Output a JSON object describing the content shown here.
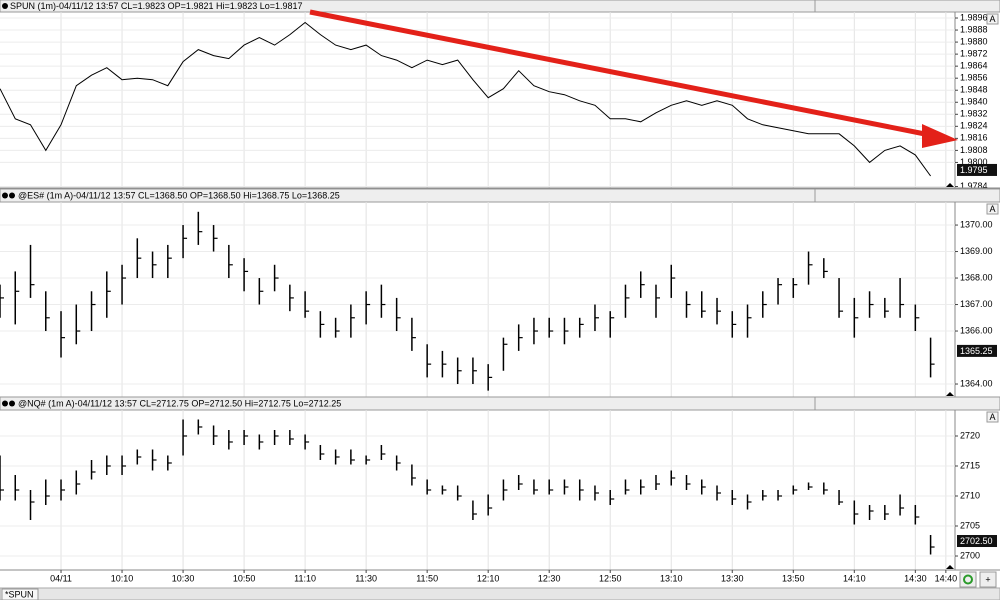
{
  "time_axis": {
    "xlim": [
      "09:30",
      "14:43"
    ],
    "xticks": [
      {
        "value": "09:50",
        "label": "04/11"
      },
      "10:10",
      "10:30",
      "10:50",
      "11:10",
      "11:30",
      "11:50",
      "12:10",
      "12:30",
      "12:50",
      "13:10",
      "13:30",
      "13:50",
      "14:10",
      "14:30",
      "14:40"
    ],
    "x": [
      "09:30",
      "09:35",
      "09:40",
      "09:45",
      "09:50",
      "09:55",
      "10:00",
      "10:05",
      "10:10",
      "10:15",
      "10:20",
      "10:25",
      "10:30",
      "10:35",
      "10:40",
      "10:45",
      "10:50",
      "10:55",
      "11:00",
      "11:05",
      "11:10",
      "11:15",
      "11:20",
      "11:25",
      "11:30",
      "11:35",
      "11:40",
      "11:45",
      "11:50",
      "11:55",
      "12:00",
      "12:05",
      "12:10",
      "12:15",
      "12:20",
      "12:25",
      "12:30",
      "12:35",
      "12:40",
      "12:45",
      "12:50",
      "12:55",
      "13:00",
      "13:05",
      "13:10",
      "13:15",
      "13:20",
      "13:25",
      "13:30",
      "13:35",
      "13:40",
      "13:45",
      "13:50",
      "13:55",
      "14:00",
      "14:05",
      "14:10",
      "14:15",
      "14:20",
      "14:25",
      "14:30",
      "14:35"
    ]
  },
  "chart_data": [
    {
      "type": "line",
      "title": "SPUN (1m)-04/11/12 13:57 CL=1.9823 OP=1.9821 Hi=1.9823 Lo=1.9817",
      "color": "#000000",
      "ylim": [
        1.9783,
        1.99
      ],
      "yticks": [
        1.9784,
        {
          "value": 1.98,
          "label": "1.9800"
        },
        1.9808,
        1.9816,
        1.9824,
        1.9832,
        {
          "value": 1.984,
          "label": "1.9840"
        },
        1.9848,
        1.9856,
        1.9864,
        1.9872,
        {
          "value": 1.988,
          "label": "1.9880"
        },
        1.9888,
        1.9896
      ],
      "last_value": {
        "value": 1.9795,
        "label": "1.9795"
      },
      "values": [
        1.9849,
        1.9829,
        1.9825,
        1.9808,
        1.9825,
        1.9851,
        1.9858,
        1.9863,
        1.9855,
        1.9856,
        1.9855,
        1.9851,
        1.9867,
        1.9875,
        1.9871,
        1.9869,
        1.9878,
        1.9883,
        1.9878,
        1.9885,
        1.9893,
        1.9885,
        1.9878,
        1.9875,
        1.9878,
        1.9871,
        1.9868,
        1.9863,
        1.9868,
        1.9865,
        1.9868,
        1.9855,
        1.9843,
        1.9849,
        1.9861,
        1.9851,
        1.9847,
        1.9845,
        1.9841,
        1.9838,
        1.9829,
        1.9829,
        1.9827,
        1.9833,
        1.9838,
        1.9841,
        1.9838,
        1.9841,
        1.9838,
        1.9829,
        1.9825,
        1.9823,
        1.9821,
        1.9819,
        1.9819,
        1.9819,
        1.9811,
        1.98,
        1.9808,
        1.9811,
        1.9805,
        1.9791
      ]
    },
    {
      "type": "ohlc",
      "title": "@ES# (1m A)-04/11/12 13:57 CL=1368.50 OP=1368.50 Hi=1368.75 Lo=1368.25",
      "color": "#000000",
      "ylim": [
        1363.51,
        1370.87
      ],
      "yticks": [
        {
          "value": 1364,
          "label": "1364.00"
        },
        {
          "value": 1366,
          "label": "1366.00"
        },
        {
          "value": 1367,
          "label": "1367.00"
        },
        {
          "value": 1368,
          "label": "1368.00"
        },
        {
          "value": 1369,
          "label": "1369.00"
        },
        {
          "value": 1370,
          "label": "1370.00"
        }
      ],
      "last_value": {
        "value": 1365.25,
        "label": "1365.25"
      },
      "high": [
        1367.75,
        1368.25,
        1369.25,
        1367.5,
        1366.75,
        1367,
        1367.5,
        1368.25,
        1368.5,
        1369.5,
        1369,
        1369.25,
        1370,
        1370.5,
        1370,
        1369.25,
        1368.75,
        1368,
        1368.5,
        1367.75,
        1367.5,
        1366.75,
        1366.5,
        1367,
        1367.5,
        1367.75,
        1367.25,
        1366.5,
        1365.5,
        1365.25,
        1365,
        1365,
        1364.75,
        1365.75,
        1366.25,
        1366.5,
        1366.5,
        1366.5,
        1366.5,
        1367,
        1366.75,
        1367.75,
        1368.25,
        1367.75,
        1368.5,
        1367.5,
        1367.5,
        1367.25,
        1366.75,
        1367,
        1367.5,
        1368,
        1368,
        1369,
        1368.75,
        1368,
        1367.25,
        1367.5,
        1367.25,
        1368,
        1367,
        1365.75
      ],
      "low": [
        1366.5,
        1366.25,
        1367.25,
        1366,
        1365,
        1365.5,
        1366,
        1366.5,
        1367,
        1368,
        1368,
        1368,
        1368.75,
        1369.25,
        1369,
        1368,
        1367.5,
        1367,
        1367.5,
        1366.75,
        1366.5,
        1365.75,
        1365.75,
        1365.75,
        1366.25,
        1366.5,
        1366,
        1365.25,
        1364.25,
        1364.25,
        1364,
        1364,
        1363.75,
        1364.5,
        1365.25,
        1365.5,
        1365.75,
        1365.5,
        1365.75,
        1366,
        1365.75,
        1366.5,
        1367.25,
        1366.5,
        1367.25,
        1366.5,
        1366.5,
        1366.25,
        1365.75,
        1365.75,
        1366.5,
        1367,
        1367.25,
        1367.75,
        1368,
        1366.5,
        1365.75,
        1366.5,
        1366.5,
        1366.5,
        1366,
        1364.25
      ],
      "close": [
        1367.25,
        1367.5,
        1367.75,
        1366.5,
        1365.75,
        1366,
        1367,
        1367.5,
        1368,
        1368.75,
        1368.5,
        1368.75,
        1369.5,
        1369.75,
        1369.5,
        1368.5,
        1368.25,
        1367.5,
        1368,
        1367.25,
        1366.75,
        1366.25,
        1366,
        1366.5,
        1367,
        1367,
        1366.5,
        1365.75,
        1364.75,
        1364.75,
        1364.5,
        1364.5,
        1364.25,
        1365.5,
        1365.75,
        1366,
        1366,
        1366,
        1366.25,
        1366.5,
        1366.5,
        1367.25,
        1367.75,
        1367.25,
        1368,
        1367,
        1366.75,
        1366.75,
        1366.25,
        1366.5,
        1367,
        1367.75,
        1367.75,
        1368.5,
        1368.25,
        1366.75,
        1366.5,
        1367,
        1366.75,
        1367,
        1366.5,
        1364.75
      ]
    },
    {
      "type": "ohlc",
      "title": "@NQ# (1m A)-04/11/12 13:57 CL=2712.75 OP=2712.50 Hi=2712.75 Lo=2712.25",
      "color": "#000000",
      "ylim": [
        2697.67,
        2724.33
      ],
      "yticks": [
        2700,
        2705,
        2710,
        2715,
        2720
      ],
      "last_value": {
        "value": 2702.5,
        "label": "2702.50"
      },
      "high": [
        2716.75,
        2713.5,
        2711,
        2712.75,
        2712.75,
        2714.25,
        2716,
        2716.75,
        2716.75,
        2717.75,
        2717.75,
        2716.75,
        2722.75,
        2722.75,
        2721.75,
        2721,
        2721,
        2720.25,
        2721,
        2721,
        2720.25,
        2718.5,
        2717.75,
        2717.75,
        2716.75,
        2718.5,
        2716.75,
        2715.25,
        2712.75,
        2711.75,
        2711.75,
        2709.25,
        2710.25,
        2712.75,
        2713.5,
        2712.75,
        2712.75,
        2712.75,
        2712.75,
        2711.75,
        2711,
        2712.75,
        2712.75,
        2713.5,
        2714.25,
        2713.5,
        2712.75,
        2711.75,
        2711,
        2710.25,
        2711,
        2711,
        2711.75,
        2712.25,
        2712.25,
        2711,
        2709.25,
        2708.5,
        2708.5,
        2710.25,
        2708.5,
        2703.5
      ],
      "low": [
        2709.25,
        2709.25,
        2706,
        2708.5,
        2709.25,
        2710.25,
        2712.75,
        2713.5,
        2713.5,
        2715.25,
        2714.25,
        2714.25,
        2716.75,
        2720.25,
        2718.5,
        2717.75,
        2718.5,
        2717.75,
        2718.5,
        2718.5,
        2717.75,
        2716,
        2715.25,
        2715.25,
        2715.25,
        2716,
        2714.25,
        2711.75,
        2710.25,
        2710.25,
        2709.25,
        2706,
        2706.75,
        2709.25,
        2711,
        2710.25,
        2710.25,
        2710.25,
        2709.25,
        2709.25,
        2708.5,
        2710.25,
        2710.25,
        2711,
        2711.75,
        2711,
        2710.25,
        2709.25,
        2708.5,
        2707.75,
        2709.25,
        2709.25,
        2710.25,
        2711,
        2710.25,
        2708.5,
        2705.25,
        2706,
        2706,
        2706.75,
        2705.25,
        2700.25
      ],
      "close": [
        2711,
        2711,
        2709,
        2710,
        2711,
        2712,
        2714,
        2715,
        2715,
        2716.5,
        2716,
        2715.5,
        2720,
        2721.5,
        2720,
        2719,
        2720,
        2719,
        2720,
        2719.5,
        2719,
        2717,
        2716.5,
        2716,
        2716,
        2717,
        2715.5,
        2713,
        2711,
        2711,
        2710,
        2707,
        2708,
        2711,
        2712,
        2711,
        2711,
        2711.5,
        2711,
        2710.5,
        2709.5,
        2711,
        2711.5,
        2712,
        2713,
        2712,
        2711.5,
        2710.5,
        2709.5,
        2709,
        2710,
        2710,
        2711,
        2711.5,
        2711,
        2709,
        2707,
        2707.5,
        2707,
        2708,
        2706.5,
        2701.5
      ]
    }
  ],
  "tab": "*SPUN"
}
